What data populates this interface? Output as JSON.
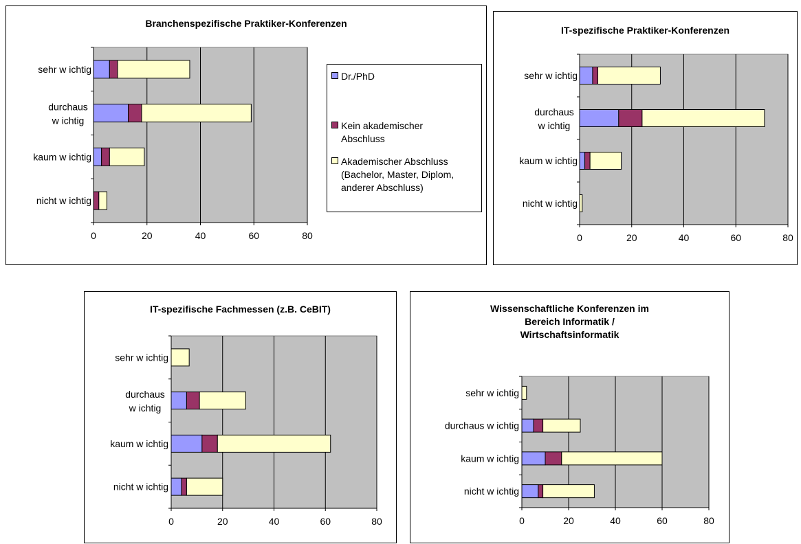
{
  "colors": {
    "plot_bg": "#c0c0c0",
    "gridline": "#000000"
  },
  "legend": {
    "items": [
      {
        "label": "Dr./PhD",
        "color": "#9999ff"
      },
      {
        "label": "Kein akademischer Abschluss",
        "color": "#993366"
      },
      {
        "label": "Akademischer Abschluss (Bachelor, Master, Diplom, anderer Abschluss)",
        "color": "#ffffcc"
      }
    ]
  },
  "chart_data": [
    {
      "type": "bar",
      "orientation": "horizontal",
      "stacked": true,
      "title": "Branchenspezifische Praktiker-Konferenzen",
      "categories": [
        "sehr wichtig",
        "durchaus wichtig",
        "kaum wichtig",
        "nicht wichtig"
      ],
      "series": [
        {
          "name": "Dr./PhD",
          "values": [
            6,
            13,
            3,
            0
          ]
        },
        {
          "name": "Kein akademischer Abschluss",
          "values": [
            3,
            5,
            3,
            2
          ]
        },
        {
          "name": "Akademischer Abschluss (Bachelor, Master, Diplom, anderer Abschluss)",
          "values": [
            27,
            41,
            13,
            3
          ]
        }
      ],
      "xlim": [
        0,
        80
      ],
      "xticks": [
        "0",
        "20",
        "40",
        "60",
        "80"
      ],
      "grid": true,
      "legend": "right"
    },
    {
      "type": "bar",
      "orientation": "horizontal",
      "stacked": true,
      "title": "IT-spezifische Praktiker-Konferenzen",
      "categories": [
        "sehr wichtig",
        "durchaus wichtig",
        "kaum wichtig",
        "nicht wichtig"
      ],
      "series": [
        {
          "name": "Dr./PhD",
          "values": [
            5,
            15,
            2,
            0
          ]
        },
        {
          "name": "Kein akademischer Abschluss",
          "values": [
            2,
            9,
            2,
            0
          ]
        },
        {
          "name": "Akademischer Abschluss (Bachelor, Master, Diplom, anderer Abschluss)",
          "values": [
            24,
            47,
            12,
            1
          ]
        }
      ],
      "xlim": [
        0,
        80
      ],
      "xticks": [
        "0",
        "20",
        "40",
        "60",
        "80"
      ],
      "grid": true
    },
    {
      "type": "bar",
      "orientation": "horizontal",
      "stacked": true,
      "title": "IT-spezifische Fachmessen (z.B. CeBIT)",
      "categories": [
        "sehr wichtig",
        "durchaus wichtig",
        "kaum wichtig",
        "nicht wichtig"
      ],
      "series": [
        {
          "name": "Dr./PhD",
          "values": [
            0,
            6,
            12,
            4
          ]
        },
        {
          "name": "Kein akademischer Abschluss",
          "values": [
            0,
            5,
            6,
            2
          ]
        },
        {
          "name": "Akademischer Abschluss (Bachelor, Master, Diplom, anderer Abschluss)",
          "values": [
            7,
            18,
            44,
            14
          ]
        }
      ],
      "xlim": [
        0,
        80
      ],
      "xticks": [
        "0",
        "20",
        "40",
        "60",
        "80"
      ],
      "grid": true
    },
    {
      "type": "bar",
      "orientation": "horizontal",
      "stacked": true,
      "title": "Wissenschaftliche Konferenzen im Bereich Informatik / Wirtschaftsinformatik",
      "title_lines": [
        "Wissenschaftliche Konferenzen im",
        "Bereich Informatik /",
        "Wirtschaftsinformatik"
      ],
      "categories": [
        "sehr wichtig",
        "durchaus wichtig",
        "kaum wichtig",
        "nicht wichtig"
      ],
      "series": [
        {
          "name": "Dr./PhD",
          "values": [
            0,
            5,
            10,
            7
          ]
        },
        {
          "name": "Kein akademischer Abschluss",
          "values": [
            0,
            4,
            7,
            2
          ]
        },
        {
          "name": "Akademischer Abschluss (Bachelor, Master, Diplom, anderer Abschluss)",
          "values": [
            2,
            16,
            43,
            22
          ]
        }
      ],
      "xlim": [
        0,
        80
      ],
      "xticks": [
        "0",
        "20",
        "40",
        "60",
        "80"
      ],
      "grid": true
    }
  ]
}
